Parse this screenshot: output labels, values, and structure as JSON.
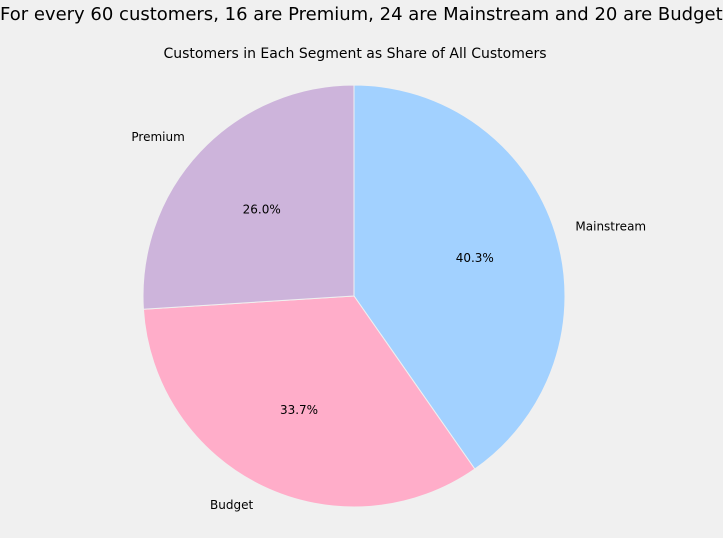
{
  "chart_data": {
    "type": "pie",
    "title": "For every 60 customers, 16 are Premium, 24 are Mainstream and 20 are Budget",
    "subtitle": "Customers in Each Segment as Share of All Customers",
    "slices": [
      {
        "label": "Mainstream",
        "value": 40.3,
        "pct_label": "40.3%",
        "color": "#a2d1ff"
      },
      {
        "label": "Budget",
        "value": 33.7,
        "pct_label": "33.7%",
        "color": "#ffadc9"
      },
      {
        "label": "Premium",
        "value": 26.0,
        "pct_label": "26.0%",
        "color": "#cdb4db"
      }
    ],
    "start_angle": "top",
    "direction": "clockwise",
    "legend": "none"
  }
}
